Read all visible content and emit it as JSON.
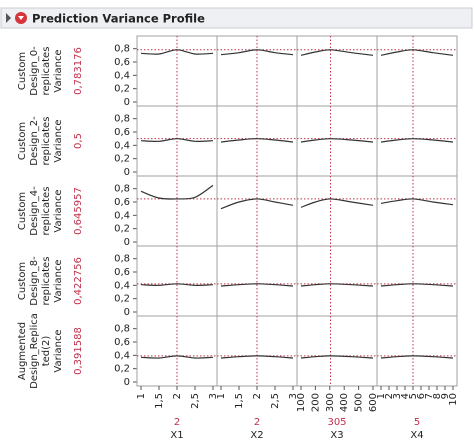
{
  "header": {
    "title": "Prediction Variance Profile"
  },
  "chart_data": {
    "type": "profiler",
    "ylim": [
      0,
      0.9
    ],
    "yticks": [
      0,
      {
        "value": 0.2,
        "label": "0,2"
      },
      {
        "value": 0.4,
        "label": "0,4"
      },
      {
        "value": 0.6,
        "label": "0,6"
      },
      {
        "value": 0.8,
        "label": "0,8"
      }
    ],
    "columns": [
      {
        "name": "X1",
        "current": 2,
        "xlim": [
          1,
          3
        ],
        "x": [
          1,
          1.5,
          2,
          2.5,
          3
        ],
        "xticks": [
          1,
          {
            "value": 1.5,
            "label": "1,5"
          },
          2,
          {
            "value": 2.5,
            "label": "2,5"
          },
          3
        ]
      },
      {
        "name": "X2",
        "current": 2,
        "xlim": [
          1,
          3
        ],
        "x": [
          1,
          1.5,
          2,
          2.5,
          3
        ],
        "xticks": [
          1,
          {
            "value": 1.5,
            "label": "1,5"
          },
          2,
          {
            "value": 2.5,
            "label": "2,5"
          },
          3
        ]
      },
      {
        "name": "X3",
        "current": 305,
        "xlim": [
          100,
          600
        ],
        "x": [
          100,
          200,
          305,
          450,
          600
        ],
        "xticks": [
          100,
          200,
          300,
          400,
          500,
          600
        ]
      },
      {
        "name": "X4",
        "current": 5,
        "xlim": [
          1,
          10
        ],
        "x": [
          1,
          3,
          5,
          7.5,
          10
        ],
        "xticks": [
          1,
          2,
          3,
          4,
          5,
          6,
          7,
          8,
          9,
          10
        ]
      }
    ],
    "rows": [
      {
        "label": [
          "Custom",
          "Design_0-",
          "replicates",
          "Variance"
        ],
        "value": 0.783176,
        "value_label": "0,783176",
        "curves": [
          [
            0.73,
            0.72,
            0.783,
            0.72,
            0.73
          ],
          [
            0.71,
            0.74,
            0.783,
            0.74,
            0.71
          ],
          [
            0.7,
            0.75,
            0.783,
            0.74,
            0.7
          ],
          [
            0.7,
            0.75,
            0.783,
            0.74,
            0.7
          ]
        ]
      },
      {
        "label": [
          "Custom",
          "Design_2-",
          "replicates",
          "Variance"
        ],
        "value": 0.5,
        "value_label": "0,5",
        "curves": [
          [
            0.47,
            0.46,
            0.5,
            0.46,
            0.47
          ],
          [
            0.45,
            0.48,
            0.5,
            0.48,
            0.45
          ],
          [
            0.45,
            0.48,
            0.5,
            0.48,
            0.45
          ],
          [
            0.45,
            0.48,
            0.5,
            0.48,
            0.45
          ]
        ]
      },
      {
        "label": [
          "Custom",
          "Design_4-",
          "replicates",
          "Variance"
        ],
        "value": 0.645957,
        "value_label": "0,645957",
        "curves": [
          [
            0.76,
            0.66,
            0.646,
            0.67,
            0.85
          ],
          [
            0.5,
            0.6,
            0.646,
            0.6,
            0.55
          ],
          [
            0.52,
            0.6,
            0.646,
            0.6,
            0.55
          ],
          [
            0.58,
            0.62,
            0.646,
            0.6,
            0.56
          ]
        ]
      },
      {
        "label": [
          "Custom",
          "Design_8-",
          "replicates",
          "Variance"
        ],
        "value": 0.422756,
        "value_label": "0,422756",
        "curves": [
          [
            0.41,
            0.4,
            0.423,
            0.4,
            0.41
          ],
          [
            0.39,
            0.41,
            0.423,
            0.41,
            0.39
          ],
          [
            0.39,
            0.41,
            0.423,
            0.41,
            0.39
          ],
          [
            0.39,
            0.41,
            0.423,
            0.41,
            0.39
          ]
        ]
      },
      {
        "label": [
          "Augmented",
          "Design_Replica",
          "ted(2)",
          "Variance"
        ],
        "value": 0.391588,
        "value_label": "0,391588",
        "curves": [
          [
            0.37,
            0.36,
            0.392,
            0.36,
            0.37
          ],
          [
            0.36,
            0.38,
            0.392,
            0.38,
            0.36
          ],
          [
            0.36,
            0.38,
            0.392,
            0.38,
            0.36
          ],
          [
            0.36,
            0.38,
            0.392,
            0.38,
            0.36
          ]
        ]
      }
    ]
  }
}
